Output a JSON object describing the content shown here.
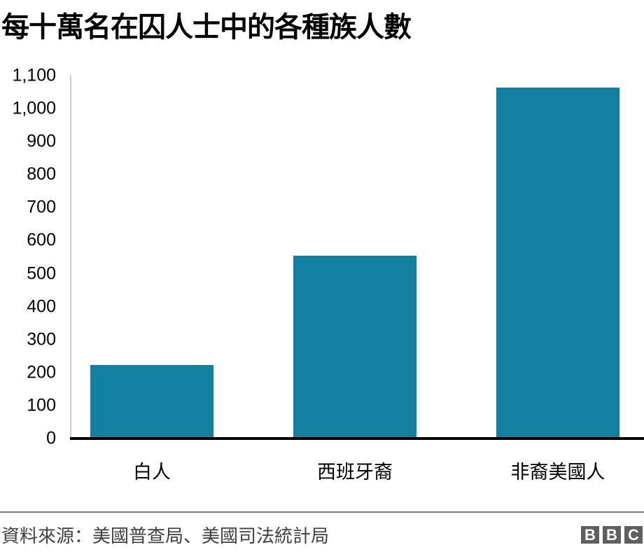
{
  "title": "每十萬名在囚人士中的各種族人數",
  "source": "資料來源：美國普查局、美國司法統計局",
  "logo": [
    "B",
    "B",
    "C"
  ],
  "colors": {
    "bar": "#1380a1",
    "axis": "#cccccc",
    "baseline": "#000000",
    "divider": "#7f7f7f"
  },
  "chart_data": {
    "type": "bar",
    "title": "每十萬名在囚人士中的各種族人數",
    "categories": [
      "白人",
      "西班牙裔",
      "非裔美國人"
    ],
    "values": [
      223,
      554,
      1063
    ],
    "xlabel": "",
    "ylabel": "",
    "ylim": [
      0,
      1100
    ],
    "yticks": [
      "0",
      "100",
      "200",
      "300",
      "400",
      "500",
      "600",
      "700",
      "800",
      "900",
      "1,000",
      "1,100"
    ],
    "grid": false,
    "legend": null,
    "source": "資料來源：美國普查局、美國司法統計局"
  }
}
